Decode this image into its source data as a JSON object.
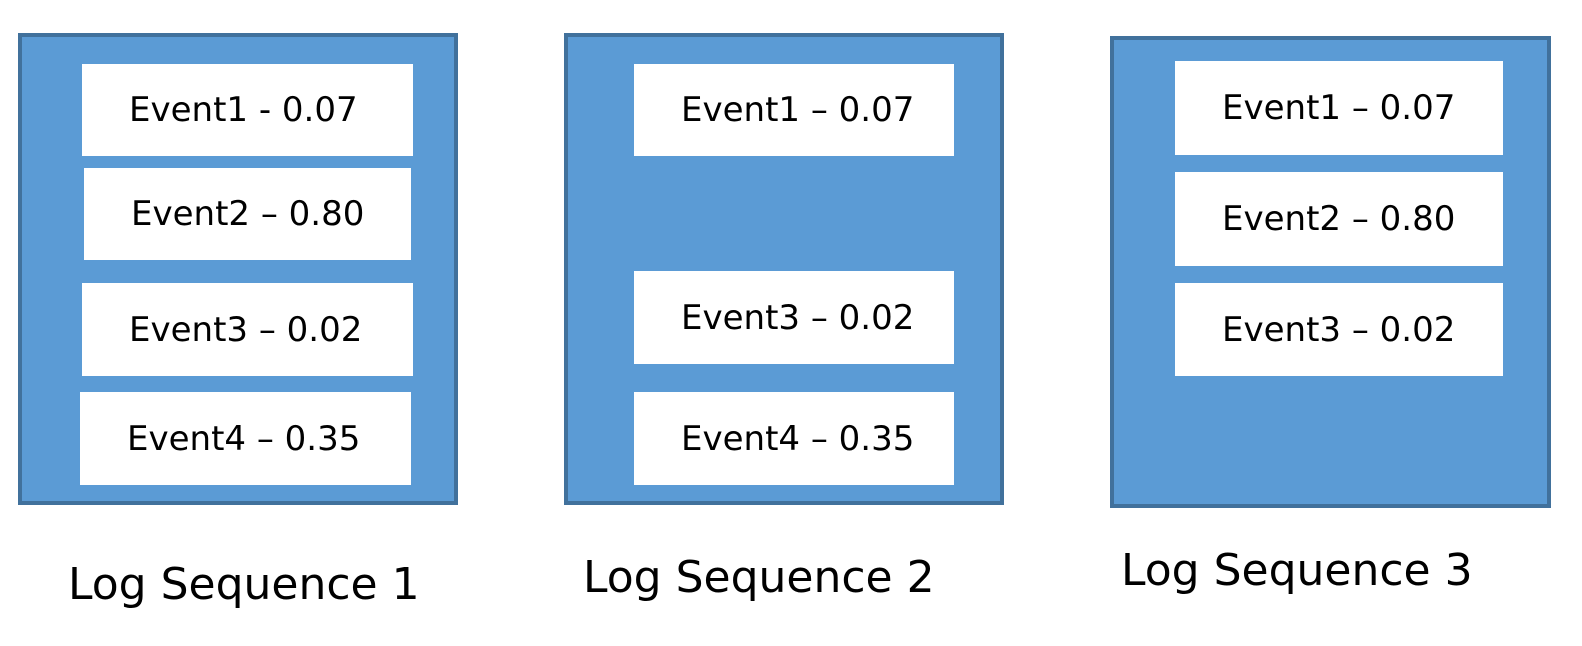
{
  "colors": {
    "container_fill": "#5b9bd5",
    "container_border": "#41719c",
    "event_fill": "#ffffff",
    "text": "#000000"
  },
  "sequences": [
    {
      "label": "Log Sequence 1",
      "events": [
        "Event1 - 0.07",
        "Event2 – 0.80",
        "Event3 – 0.02",
        "Event4 – 0.35"
      ]
    },
    {
      "label": "Log Sequence 2",
      "events": [
        "Event1 – 0.07",
        "Event3 – 0.02",
        "Event4 – 0.35"
      ]
    },
    {
      "label": "Log Sequence 3",
      "events": [
        "Event1 – 0.07",
        "Event2 – 0.80",
        "Event3 – 0.02"
      ]
    }
  ]
}
